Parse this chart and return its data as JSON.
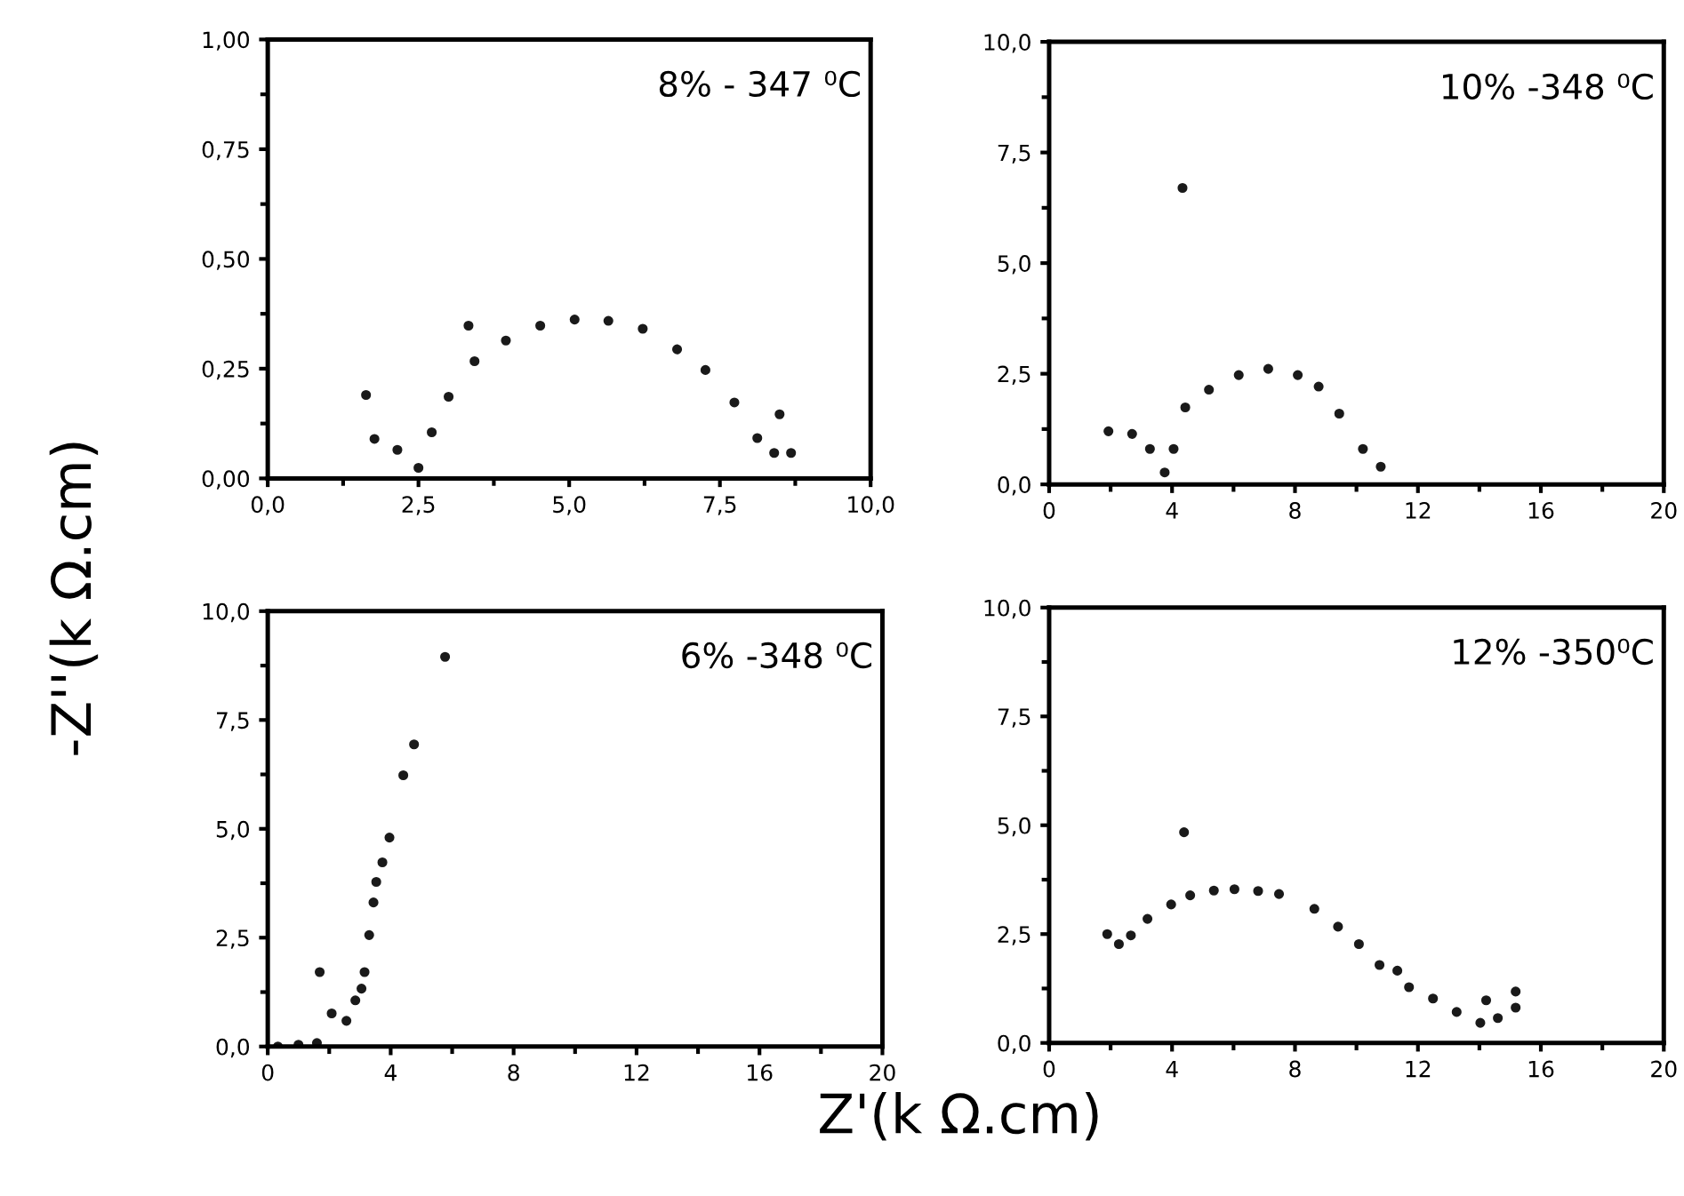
{
  "chart_data": [
    {
      "type": "scatter",
      "ylabel": "-Z''(k Ω.cm)",
      "annotations": [
        "8% - 347 ⁰C"
      ],
      "marker": "circle",
      "grid": false,
      "legend": false,
      "xlim": [
        0,
        10
      ],
      "xticks": [
        {
          "value": 0,
          "label": "0,0"
        },
        {
          "value": 2.5,
          "label": "2,5"
        },
        {
          "value": 5,
          "label": "5,0"
        },
        {
          "value": 7.5,
          "label": "7,5"
        },
        {
          "value": 10,
          "label": "10,0"
        }
      ],
      "ylim": [
        0,
        1
      ],
      "yticks": [
        {
          "value": 0,
          "label": "0,00"
        },
        {
          "value": 0.25,
          "label": "0,25"
        },
        {
          "value": 0.5,
          "label": "0,50"
        },
        {
          "value": 0.75,
          "label": "0,75"
        },
        {
          "value": 1,
          "label": "1,00"
        }
      ],
      "series": [
        {
          "color": "#1a1a1a",
          "x": [
            1.63,
            1.77,
            2.15,
            2.5,
            2.72,
            3.0,
            3.33,
            3.43,
            3.95,
            4.52,
            5.09,
            5.65,
            6.22,
            6.79,
            7.26,
            7.74,
            8.12,
            8.4,
            8.49,
            8.68
          ],
          "values": [
            0.19,
            0.09,
            0.065,
            0.024,
            0.105,
            0.186,
            0.348,
            0.267,
            0.314,
            0.348,
            0.362,
            0.359,
            0.341,
            0.294,
            0.247,
            0.173,
            0.092,
            0.058,
            0.146,
            0.058
          ]
        }
      ]
    },
    {
      "type": "scatter",
      "annotations": [
        "10% -348 ⁰C"
      ],
      "marker": "circle",
      "grid": false,
      "legend": false,
      "xlim": [
        0,
        20
      ],
      "xticks": [
        0,
        4,
        8,
        12,
        16,
        20
      ],
      "ylim": [
        0,
        10
      ],
      "yticks": [
        {
          "value": 0,
          "label": "0,0"
        },
        {
          "value": 2.5,
          "label": "2,5"
        },
        {
          "value": 5,
          "label": "5,0"
        },
        {
          "value": 7.5,
          "label": "7,5"
        },
        {
          "value": 10,
          "label": "10,0"
        }
      ],
      "series": [
        {
          "color": "#1a1a1a",
          "x": [
            1.93,
            2.7,
            3.28,
            3.76,
            4.05,
            4.34,
            4.43,
            5.2,
            6.17,
            7.13,
            8.09,
            8.77,
            9.44,
            10.21,
            10.79
          ],
          "values": [
            1.2,
            1.14,
            0.8,
            0.27,
            0.8,
            6.7,
            1.74,
            2.14,
            2.47,
            2.61,
            2.47,
            2.21,
            1.6,
            0.8,
            0.4
          ]
        }
      ]
    },
    {
      "type": "scatter",
      "xlabel": "Z'(k Ω.cm)",
      "annotations": [
        "6% -348 ⁰C"
      ],
      "marker": "circle",
      "grid": false,
      "legend": false,
      "xlim": [
        0,
        20
      ],
      "xticks": [
        0,
        4,
        8,
        12,
        16,
        20
      ],
      "ylim": [
        0,
        10
      ],
      "yticks": [
        {
          "value": 0,
          "label": "0,0"
        },
        {
          "value": 2.5,
          "label": "2,5"
        },
        {
          "value": 5,
          "label": "5,0"
        },
        {
          "value": 7.5,
          "label": "7,5"
        },
        {
          "value": 10,
          "label": "10,0"
        }
      ],
      "series": [
        {
          "color": "#1a1a1a",
          "x": [
            0.33,
            1.0,
            1.6,
            1.69,
            2.08,
            2.56,
            2.85,
            3.05,
            3.15,
            3.3,
            3.44,
            3.53,
            3.73,
            3.96,
            4.41,
            4.76,
            5.77
          ],
          "values": [
            0.0,
            0.04,
            0.08,
            1.71,
            0.76,
            0.59,
            1.06,
            1.33,
            1.71,
            2.56,
            3.31,
            3.78,
            4.23,
            4.8,
            6.23,
            6.94,
            8.95
          ]
        }
      ]
    },
    {
      "type": "scatter",
      "annotations": [
        "12% -350⁰C"
      ],
      "marker": "circle",
      "grid": false,
      "legend": false,
      "xlim": [
        0,
        20
      ],
      "xticks": [
        0,
        4,
        8,
        12,
        16,
        20
      ],
      "ylim": [
        0,
        10
      ],
      "yticks": [
        {
          "value": 0,
          "label": "0,0"
        },
        {
          "value": 2.5,
          "label": "2,5"
        },
        {
          "value": 5,
          "label": "5,0"
        },
        {
          "value": 7.5,
          "label": "7,5"
        },
        {
          "value": 10,
          "label": "10,0"
        }
      ],
      "series": [
        {
          "color": "#1a1a1a",
          "x": [
            1.89,
            2.27,
            2.66,
            3.2,
            3.97,
            4.39,
            4.59,
            5.36,
            6.03,
            6.8,
            7.48,
            8.63,
            9.4,
            10.08,
            10.75,
            11.33,
            11.71,
            12.49,
            13.26,
            14.03,
            14.22,
            14.6,
            15.18,
            15.18
          ],
          "values": [
            2.5,
            2.27,
            2.47,
            2.85,
            3.18,
            4.84,
            3.39,
            3.5,
            3.53,
            3.49,
            3.42,
            3.08,
            2.67,
            2.27,
            1.79,
            1.66,
            1.28,
            1.02,
            0.71,
            0.46,
            0.98,
            0.57,
            0.81,
            1.18
          ]
        }
      ]
    }
  ]
}
